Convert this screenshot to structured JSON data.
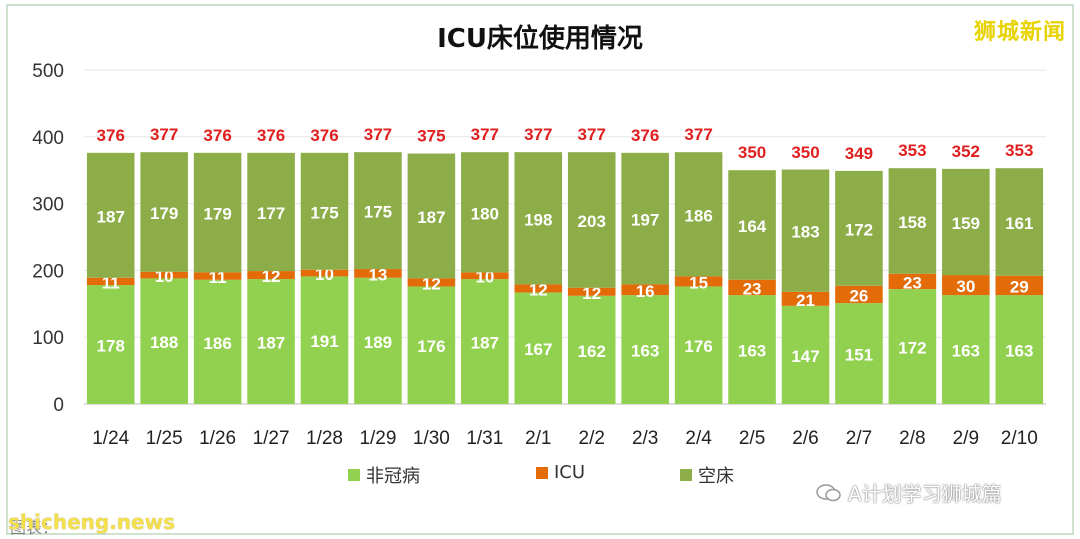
{
  "watermark_top": "狮城新闻",
  "wechat_label": "A计划学习狮城篇",
  "site_label": "shicheng.news",
  "source_label": "图表：",
  "colors": {
    "non_covid": "#92d050",
    "icu": "#e36c09",
    "empty": "#8cad48"
  },
  "chart_data": {
    "type": "bar",
    "stacked": true,
    "title": "ICU床位使用情况",
    "xlabel": "",
    "ylabel": "",
    "ylim": [
      0,
      500
    ],
    "yticks": [
      0,
      100,
      200,
      300,
      400,
      500
    ],
    "grid": true,
    "legend_position": "bottom",
    "categories": [
      "1/24",
      "1/25",
      "1/26",
      "1/27",
      "1/28",
      "1/29",
      "1/30",
      "1/31",
      "2/1",
      "2/2",
      "2/3",
      "2/4",
      "2/5",
      "2/6",
      "2/7",
      "2/8",
      "2/9",
      "2/10"
    ],
    "series": [
      {
        "name": "非冠病",
        "values": [
          178,
          188,
          186,
          187,
          191,
          189,
          176,
          187,
          167,
          162,
          163,
          176,
          163,
          147,
          151,
          172,
          163,
          163
        ]
      },
      {
        "name": "ICU",
        "values": [
          11,
          10,
          11,
          12,
          10,
          13,
          12,
          10,
          12,
          12,
          16,
          15,
          23,
          21,
          26,
          23,
          30,
          29
        ]
      },
      {
        "name": "空床",
        "values": [
          187,
          179,
          179,
          177,
          175,
          175,
          187,
          180,
          198,
          203,
          197,
          186,
          164,
          183,
          172,
          158,
          159,
          161
        ]
      }
    ],
    "totals": [
      376,
      377,
      376,
      376,
      376,
      377,
      375,
      377,
      377,
      377,
      376,
      377,
      350,
      350,
      349,
      353,
      352,
      353
    ]
  }
}
